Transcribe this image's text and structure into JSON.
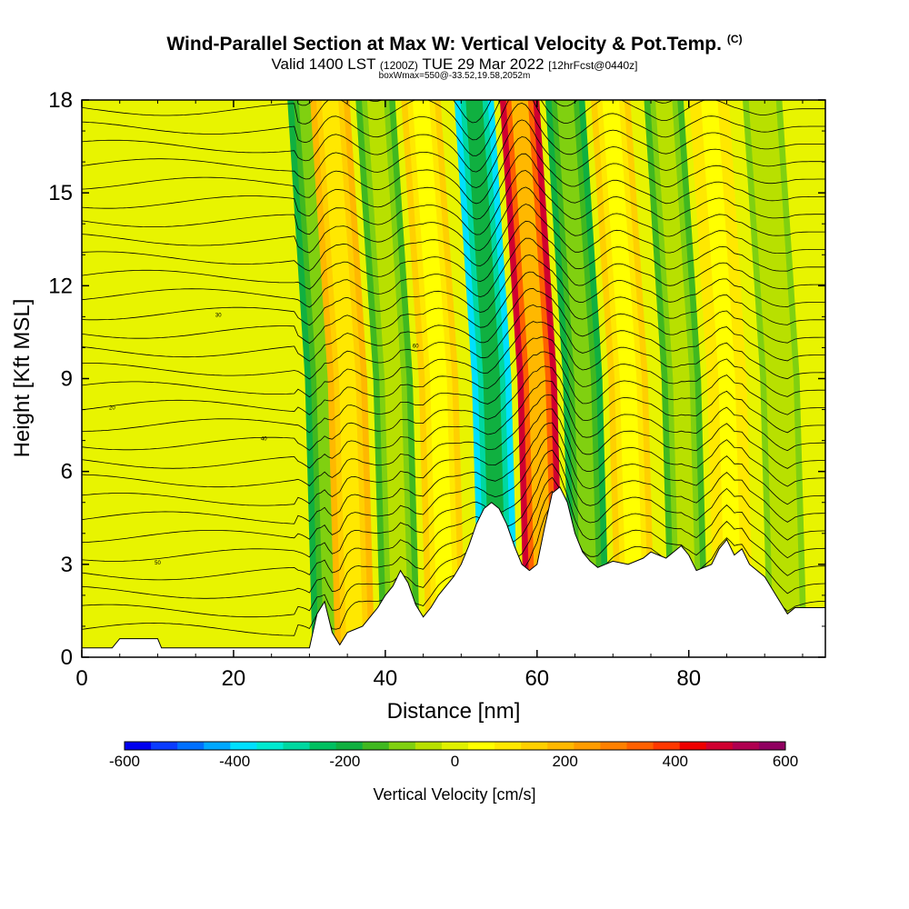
{
  "header": {
    "title": "Wind-Parallel Section at Max W: Vertical Velocity & Pot.Temp.",
    "title_tag": "(C)",
    "subtitle_main": "Valid 1400 LST",
    "subtitle_z": "(1200Z)",
    "subtitle_date": "TUE 29 Mar 2022",
    "subtitle_fcst": "[12hrFcst@0440z]",
    "subtitle_small": "boxWmax=550@-33.52,19.58,2052m"
  },
  "colorbar": {
    "title": "Vertical Velocity [cm/s]",
    "tick_labels": [
      "-600",
      "-400",
      "-200",
      "0",
      "200",
      "400",
      "600"
    ],
    "colors": [
      "#0000ee",
      "#0a3cff",
      "#0070ff",
      "#00a8ff",
      "#00e0ff",
      "#00ead0",
      "#00d8a0",
      "#00c060",
      "#10b040",
      "#40b820",
      "#80d010",
      "#b8e000",
      "#e0f000",
      "#ffff00",
      "#ffe800",
      "#ffd000",
      "#ffb800",
      "#ff9c00",
      "#ff8000",
      "#ff6000",
      "#ff3800",
      "#ee0000",
      "#d00030",
      "#b00050",
      "#900060"
    ]
  },
  "chart_data": {
    "type": "heatmap",
    "title": "Wind-Parallel Section at Max W: Vertical Velocity & Pot.Temp.",
    "xlabel": "Distance [nm]",
    "ylabel": "Height [Kft MSL]",
    "xlim": [
      0,
      98
    ],
    "ylim": [
      0,
      18
    ],
    "x_ticks": [
      "0",
      "20",
      "40",
      "60",
      "80"
    ],
    "y_ticks": [
      "0",
      "3",
      "6",
      "9",
      "12",
      "15",
      "18"
    ],
    "colorbar_range": [
      -600,
      600
    ],
    "colorbar_label": "Vertical Velocity [cm/s]",
    "w_bands": [
      {
        "x": 33,
        "w": -210
      },
      {
        "x": 36,
        "w": 170
      },
      {
        "x": 42,
        "w": -130
      },
      {
        "x": 48,
        "w": 120
      },
      {
        "x": 55,
        "w": -390
      },
      {
        "x": 61,
        "w": 470
      },
      {
        "x": 67,
        "w": -190
      },
      {
        "x": 73,
        "w": 140
      },
      {
        "x": 80,
        "w": -150
      },
      {
        "x": 86,
        "w": 110
      },
      {
        "x": 93,
        "w": -80
      }
    ],
    "terrain_kft": [
      [
        0,
        0.3
      ],
      [
        4,
        0.3
      ],
      [
        5,
        0.6
      ],
      [
        10,
        0.6
      ],
      [
        10.5,
        0.3
      ],
      [
        30,
        0.3
      ],
      [
        31,
        1.4
      ],
      [
        32,
        1.8
      ],
      [
        33,
        0.8
      ],
      [
        34,
        0.4
      ],
      [
        35,
        0.8
      ],
      [
        36,
        0.9
      ],
      [
        37,
        1.0
      ],
      [
        38,
        1.3
      ],
      [
        39,
        1.6
      ],
      [
        40,
        2.0
      ],
      [
        41,
        2.3
      ],
      [
        42,
        2.8
      ],
      [
        43,
        2.4
      ],
      [
        44,
        1.7
      ],
      [
        45,
        1.3
      ],
      [
        46,
        1.6
      ],
      [
        47,
        2.0
      ],
      [
        48,
        2.3
      ],
      [
        49,
        2.6
      ],
      [
        50,
        3.0
      ],
      [
        51,
        3.6
      ],
      [
        52,
        4.3
      ],
      [
        53,
        4.8
      ],
      [
        54,
        5.0
      ],
      [
        55,
        4.8
      ],
      [
        56,
        4.3
      ],
      [
        57,
        3.6
      ],
      [
        58,
        3.0
      ],
      [
        59,
        2.8
      ],
      [
        60,
        3.0
      ],
      [
        61,
        4.2
      ],
      [
        62,
        5.3
      ],
      [
        63,
        5.5
      ],
      [
        64,
        5.0
      ],
      [
        65,
        4.0
      ],
      [
        66,
        3.4
      ],
      [
        67,
        3.1
      ],
      [
        68,
        2.9
      ],
      [
        69,
        3.0
      ],
      [
        70,
        3.1
      ],
      [
        72,
        3.0
      ],
      [
        74,
        3.2
      ],
      [
        75,
        3.4
      ],
      [
        77,
        3.2
      ],
      [
        79,
        3.6
      ],
      [
        80,
        3.3
      ],
      [
        81,
        2.8
      ],
      [
        83,
        3.0
      ],
      [
        84,
        3.5
      ],
      [
        85,
        3.8
      ],
      [
        86,
        3.3
      ],
      [
        87,
        3.5
      ],
      [
        88,
        3.0
      ],
      [
        90,
        2.6
      ],
      [
        91,
        2.2
      ],
      [
        92,
        1.8
      ],
      [
        93,
        1.4
      ],
      [
        94,
        1.6
      ],
      [
        98,
        1.6
      ]
    ],
    "theta_contour_labels": [
      "20",
      "30",
      "40",
      "50",
      "60"
    ]
  },
  "axes": {
    "xlabel": "Distance [nm]",
    "ylabel": "Height [Kft MSL]",
    "x_ticks": [
      "0",
      "20",
      "40",
      "60",
      "80"
    ],
    "y_ticks": [
      "0",
      "3",
      "6",
      "9",
      "12",
      "15",
      "18"
    ]
  }
}
